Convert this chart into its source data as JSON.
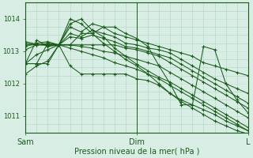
{
  "bg_color": "#d8ede4",
  "grid_color_major": "#ffffff",
  "grid_color_minor": "#b8d8cc",
  "line_color": "#1a5c1a",
  "xlabel": "Pression niveau de la mer( hPa )",
  "ylim": [
    1010.5,
    1014.5
  ],
  "yticks": [
    1011,
    1012,
    1013,
    1014
  ],
  "xtick_labels": [
    "Sam",
    "Dim",
    "L"
  ],
  "xtick_positions": [
    0.0,
    0.5,
    1.0
  ],
  "series": [
    [
      0.0,
      1012.62,
      0.05,
      1013.35,
      0.1,
      1013.15,
      0.15,
      1013.2,
      0.2,
      1013.75,
      0.25,
      1013.6,
      0.3,
      1013.85,
      0.35,
      1013.75,
      0.4,
      1013.55,
      0.45,
      1013.45,
      0.5,
      1013.35,
      0.55,
      1013.25,
      0.6,
      1013.15,
      0.65,
      1013.05,
      0.7,
      1012.95,
      0.75,
      1012.85,
      0.8,
      1012.65,
      0.85,
      1012.55,
      0.9,
      1012.45,
      0.95,
      1012.35,
      1.0,
      1012.25
    ],
    [
      0.0,
      1013.05,
      0.05,
      1013.2,
      0.1,
      1013.25,
      0.15,
      1013.2,
      0.2,
      1013.55,
      0.25,
      1013.45,
      0.3,
      1013.65,
      0.35,
      1013.55,
      0.4,
      1013.45,
      0.45,
      1013.25,
      0.5,
      1013.2,
      0.55,
      1013.1,
      0.6,
      1013.05,
      0.65,
      1012.95,
      0.7,
      1012.75,
      0.75,
      1012.55,
      0.8,
      1012.35,
      0.85,
      1012.15,
      0.9,
      1012.0,
      0.95,
      1011.85,
      1.0,
      1011.7
    ],
    [
      0.0,
      1013.15,
      0.05,
      1013.25,
      0.1,
      1013.3,
      0.15,
      1013.2,
      0.2,
      1013.45,
      0.25,
      1013.4,
      0.3,
      1013.5,
      0.35,
      1013.4,
      0.4,
      1013.3,
      0.45,
      1013.15,
      0.5,
      1013.1,
      0.55,
      1013.0,
      0.6,
      1012.9,
      0.65,
      1012.8,
      0.7,
      1012.6,
      0.75,
      1012.4,
      0.8,
      1012.2,
      0.85,
      1012.0,
      0.9,
      1011.8,
      0.95,
      1011.6,
      1.0,
      1011.4
    ],
    [
      0.0,
      1013.2,
      0.05,
      1013.2,
      0.1,
      1013.2,
      0.15,
      1013.2,
      0.2,
      1013.2,
      0.25,
      1013.2,
      0.3,
      1013.2,
      0.35,
      1013.2,
      0.4,
      1013.2,
      0.45,
      1013.1,
      0.5,
      1013.05,
      0.55,
      1012.95,
      0.6,
      1012.85,
      0.65,
      1012.65,
      0.7,
      1012.45,
      0.75,
      1012.25,
      0.8,
      1012.05,
      0.85,
      1011.85,
      0.9,
      1011.65,
      0.95,
      1011.45,
      1.0,
      1011.25
    ],
    [
      0.0,
      1013.25,
      0.05,
      1013.2,
      0.1,
      1013.2,
      0.15,
      1013.2,
      0.2,
      1013.2,
      0.25,
      1013.15,
      0.3,
      1013.1,
      0.35,
      1013.0,
      0.4,
      1012.95,
      0.45,
      1012.85,
      0.5,
      1012.75,
      0.55,
      1012.65,
      0.6,
      1012.55,
      0.65,
      1012.35,
      0.7,
      1012.15,
      0.75,
      1011.95,
      0.8,
      1011.75,
      0.85,
      1011.55,
      0.9,
      1011.35,
      0.95,
      1011.15,
      1.0,
      1010.95
    ],
    [
      0.0,
      1013.3,
      0.05,
      1013.22,
      0.1,
      1013.18,
      0.15,
      1013.2,
      0.2,
      1013.1,
      0.25,
      1013.0,
      0.3,
      1012.9,
      0.35,
      1012.8,
      0.4,
      1012.65,
      0.45,
      1012.55,
      0.5,
      1012.45,
      0.55,
      1012.3,
      0.6,
      1012.15,
      0.65,
      1011.95,
      0.7,
      1011.75,
      0.75,
      1011.55,
      0.8,
      1011.35,
      0.85,
      1011.15,
      0.9,
      1010.95,
      0.95,
      1010.75,
      1.0,
      1010.55
    ],
    [
      0.0,
      1012.62,
      0.05,
      1012.9,
      0.1,
      1013.05,
      0.15,
      1013.2,
      0.2,
      1013.85,
      0.25,
      1014.0,
      0.3,
      1013.65,
      0.35,
      1013.45,
      0.4,
      1013.1,
      0.45,
      1012.85,
      0.5,
      1012.6,
      0.55,
      1012.4,
      0.6,
      1012.2,
      0.65,
      1012.05,
      0.7,
      1011.85,
      0.75,
      1011.65,
      0.8,
      1011.45,
      0.85,
      1011.25,
      0.9,
      1011.05,
      0.95,
      1010.85,
      1.0,
      1010.65
    ],
    [
      0.0,
      1012.3,
      0.05,
      1012.55,
      0.1,
      1012.7,
      0.15,
      1013.2,
      0.2,
      1013.2,
      0.25,
      1013.55,
      0.3,
      1013.55,
      0.35,
      1013.75,
      0.4,
      1013.75,
      0.45,
      1013.55,
      0.5,
      1013.4,
      0.55,
      1013.15,
      0.6,
      1012.55,
      0.65,
      1012.0,
      0.7,
      1011.35,
      0.75,
      1011.35,
      0.8,
      1013.15,
      0.85,
      1013.05,
      0.9,
      1012.0,
      0.95,
      1011.5,
      1.0,
      1011.1
    ],
    [
      0.0,
      1012.62,
      0.05,
      1012.62,
      0.1,
      1013.25,
      0.15,
      1013.2,
      0.2,
      1014.0,
      0.25,
      1013.85,
      0.3,
      1013.55,
      0.35,
      1013.25,
      0.4,
      1013.0,
      0.45,
      1012.75,
      0.5,
      1012.55,
      0.55,
      1012.3,
      0.6,
      1012.0,
      0.65,
      1011.7,
      0.7,
      1011.45,
      0.75,
      1011.25,
      0.8,
      1011.05,
      0.85,
      1010.85,
      0.9,
      1010.7,
      0.95,
      1010.55,
      1.0,
      1010.45
    ],
    [
      0.0,
      1012.62,
      0.05,
      1012.62,
      0.1,
      1012.62,
      0.15,
      1013.2,
      0.2,
      1012.55,
      0.25,
      1012.3,
      0.3,
      1012.3,
      0.35,
      1012.3,
      0.4,
      1012.3,
      0.45,
      1012.3,
      0.5,
      1012.15,
      0.55,
      1012.1,
      0.6,
      1011.95,
      0.65,
      1011.7,
      0.7,
      1011.5,
      0.75,
      1011.35,
      0.8,
      1011.2,
      0.85,
      1011.05,
      0.9,
      1010.85,
      0.95,
      1010.7,
      1.0,
      1010.55
    ]
  ]
}
